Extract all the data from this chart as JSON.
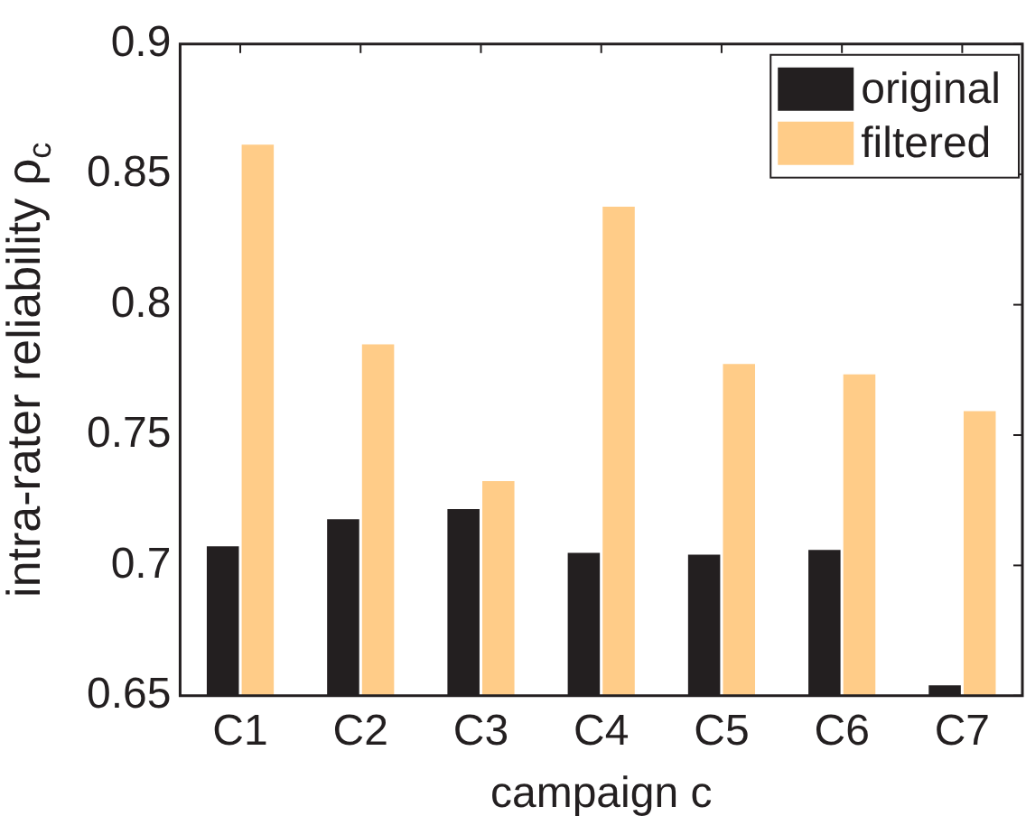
{
  "chart_data": {
    "type": "bar",
    "xlabel": "campaign c",
    "ylabel": "intra-rater reliability ρ$_{c}$",
    "categories": [
      "C1",
      "C2",
      "C3",
      "C4",
      "C5",
      "C6",
      "C7"
    ],
    "series": [
      {
        "name": "original",
        "color": "#231f20",
        "values": [
          0.7073,
          0.7177,
          0.7216,
          0.7048,
          0.7041,
          0.7059,
          0.654
        ]
      },
      {
        "name": "filtered",
        "color": "#ffcc88",
        "values": [
          0.8614,
          0.7848,
          0.7323,
          0.8376,
          0.7773,
          0.7733,
          0.7592
        ]
      }
    ],
    "ylim": [
      0.65,
      0.9
    ],
    "yticks": [
      0.65,
      0.7,
      0.75,
      0.8,
      0.85,
      0.9
    ],
    "grid": false,
    "legend": "top right"
  }
}
